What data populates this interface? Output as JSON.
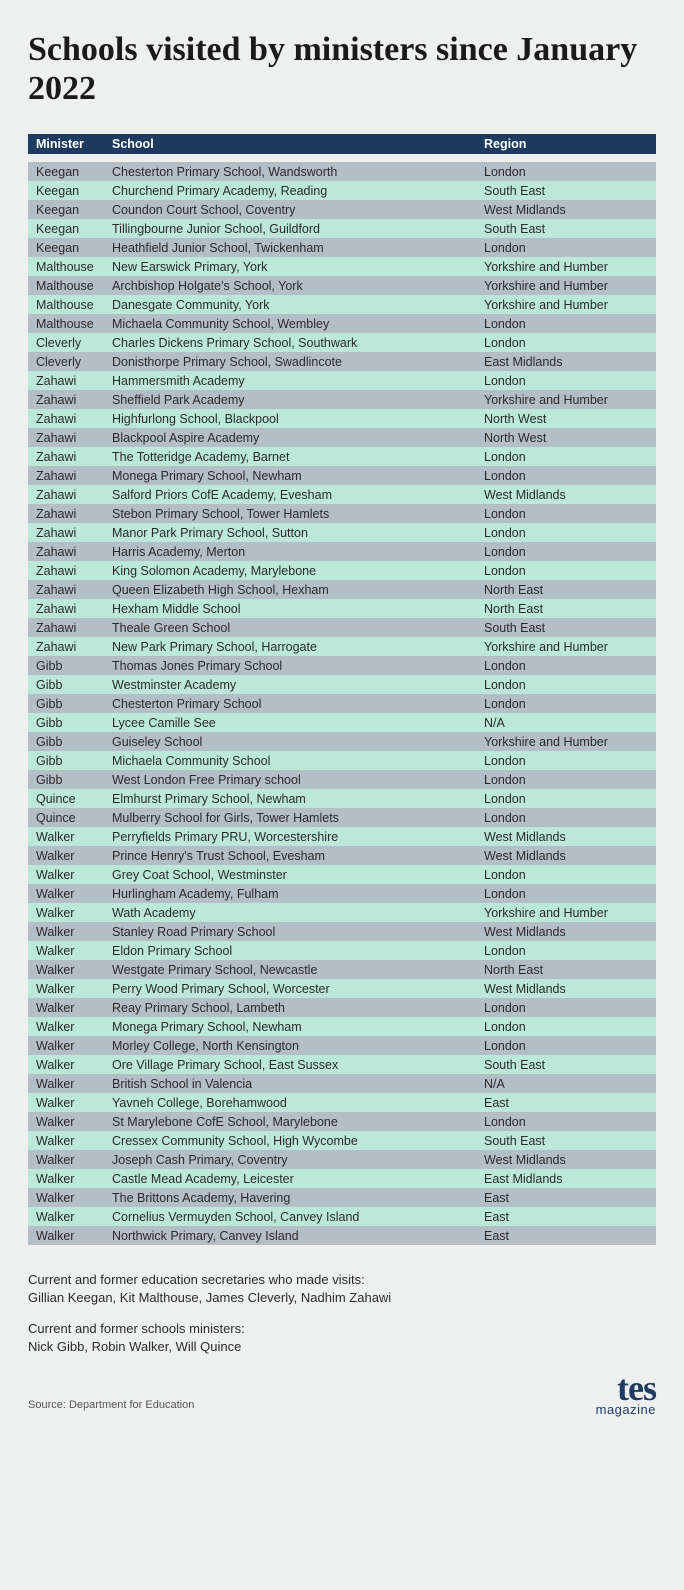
{
  "title": "Schools visited by ministers since January 2022",
  "columns": [
    "Minister",
    "School",
    "Region"
  ],
  "col_widths": [
    "76px",
    "auto",
    "180px"
  ],
  "header_bg": "#1e3a5f",
  "header_fg": "#ffffff",
  "row_colors": {
    "grey": "#b4bec7",
    "mint": "#bce8d9"
  },
  "page_bg": "#eef0f0",
  "title_fontsize": 34,
  "body_fontsize": 12.5,
  "rows": [
    [
      "Keegan",
      "Chesterton Primary School, Wandsworth",
      "London"
    ],
    [
      "Keegan",
      "Churchend Primary Academy, Reading",
      "South East"
    ],
    [
      "Keegan",
      "Coundon Court School, Coventry",
      "West Midlands"
    ],
    [
      "Keegan",
      "Tillingbourne Junior School, Guildford",
      "South East"
    ],
    [
      "Keegan",
      "Heathfield Junior School, Twickenham",
      "London"
    ],
    [
      "Malthouse",
      "New Earswick Primary, York",
      "Yorkshire and Humber"
    ],
    [
      "Malthouse",
      "Archbishop Holgate's School, York",
      "Yorkshire and Humber"
    ],
    [
      "Malthouse",
      "Danesgate Community, York",
      "Yorkshire and Humber"
    ],
    [
      "Malthouse",
      "Michaela Community School, Wembley",
      "London"
    ],
    [
      "Cleverly",
      "Charles Dickens Primary School, Southwark",
      "London"
    ],
    [
      "Cleverly",
      "Donisthorpe Primary School, Swadlincote",
      "East Midlands"
    ],
    [
      "Zahawi",
      "Hammersmith Academy",
      "London"
    ],
    [
      "Zahawi",
      "Sheffield Park Academy",
      "Yorkshire and Humber"
    ],
    [
      "Zahawi",
      "Highfurlong School, Blackpool",
      "North West"
    ],
    [
      "Zahawi",
      "Blackpool Aspire Academy",
      "North West"
    ],
    [
      "Zahawi",
      "The Totteridge Academy, Barnet",
      "London"
    ],
    [
      "Zahawi",
      "Monega Primary School, Newham",
      "London"
    ],
    [
      "Zahawi",
      "Salford Priors CofE Academy, Evesham",
      "West Midlands"
    ],
    [
      "Zahawi",
      "Stebon Primary School, Tower Hamlets",
      "London"
    ],
    [
      "Zahawi",
      "Manor Park Primary School, Sutton",
      "London"
    ],
    [
      "Zahawi",
      "Harris Academy, Merton",
      "London"
    ],
    [
      "Zahawi",
      "King Solomon Academy, Marylebone",
      "London"
    ],
    [
      "Zahawi",
      "Queen Elizabeth High School, Hexham",
      "North East"
    ],
    [
      "Zahawi",
      "Hexham Middle School",
      "North East"
    ],
    [
      "Zahawi",
      "Theale Green School",
      "South East"
    ],
    [
      "Zahawi",
      "New Park Primary School, Harrogate",
      "Yorkshire and Humber"
    ],
    [
      "Gibb",
      "Thomas Jones Primary School",
      "London"
    ],
    [
      "Gibb",
      "Westminster Academy",
      "London"
    ],
    [
      "Gibb",
      "Chesterton Primary School",
      "London"
    ],
    [
      "Gibb",
      "Lycee Camille See",
      "N/A"
    ],
    [
      "Gibb",
      "Guiseley School",
      "Yorkshire and Humber"
    ],
    [
      "Gibb",
      "Michaela Community School",
      "London"
    ],
    [
      "Gibb",
      "West London Free Primary school",
      "London"
    ],
    [
      "Quince",
      "Elmhurst Primary School, Newham",
      "London"
    ],
    [
      "Quince",
      "Mulberry School for Girls, Tower Hamlets",
      "London"
    ],
    [
      "Walker",
      "Perryfields Primary PRU, Worcestershire",
      "West Midlands"
    ],
    [
      "Walker",
      "Prince Henry's Trust School, Evesham",
      "West Midlands"
    ],
    [
      "Walker",
      "Grey Coat School, Westminster",
      "London"
    ],
    [
      "Walker",
      "Hurlingham Academy, Fulham",
      "London"
    ],
    [
      "Walker",
      "Wath Academy",
      "Yorkshire and Humber"
    ],
    [
      "Walker",
      "Stanley Road Primary School",
      "West Midlands"
    ],
    [
      "Walker",
      "Eldon Primary School",
      "London"
    ],
    [
      "Walker",
      "Westgate Primary School, Newcastle",
      "North East"
    ],
    [
      "Walker",
      "Perry Wood Primary School, Worcester",
      "West Midlands"
    ],
    [
      "Walker",
      "Reay Primary School, Lambeth",
      "London"
    ],
    [
      "Walker",
      "Monega Primary School, Newham",
      "London"
    ],
    [
      "Walker",
      "Morley College, North Kensington",
      "London"
    ],
    [
      "Walker",
      "Ore Village Primary School, East Sussex",
      "South East"
    ],
    [
      "Walker",
      "British School in Valencia",
      "N/A"
    ],
    [
      "Walker",
      "Yavneh College, Borehamwood",
      "East"
    ],
    [
      "Walker",
      "St Marylebone CofE School, Marylebone",
      "London"
    ],
    [
      "Walker",
      "Cressex Community School, High Wycombe",
      "South East"
    ],
    [
      "Walker",
      "Joseph Cash Primary, Coventry",
      "West Midlands"
    ],
    [
      "Walker",
      "Castle Mead Academy, Leicester",
      "East Midlands"
    ],
    [
      "Walker",
      "The Brittons Academy, Havering",
      "East"
    ],
    [
      "Walker",
      "Cornelius Vermuyden School, Canvey Island",
      "East"
    ],
    [
      "Walker",
      "Northwick Primary, Canvey Island",
      "East"
    ]
  ],
  "footer": {
    "line1a": "Current and former education secretaries who made visits:",
    "line1b": "Gillian Keegan, Kit Malthouse, James Cleverly, Nadhim Zahawi",
    "line2a": "Current and former schools ministers:",
    "line2b": "Nick Gibb, Robin Walker, Will Quince"
  },
  "source": "Source: Department for Education",
  "logo": {
    "main": "tes",
    "sub": "magazine"
  }
}
